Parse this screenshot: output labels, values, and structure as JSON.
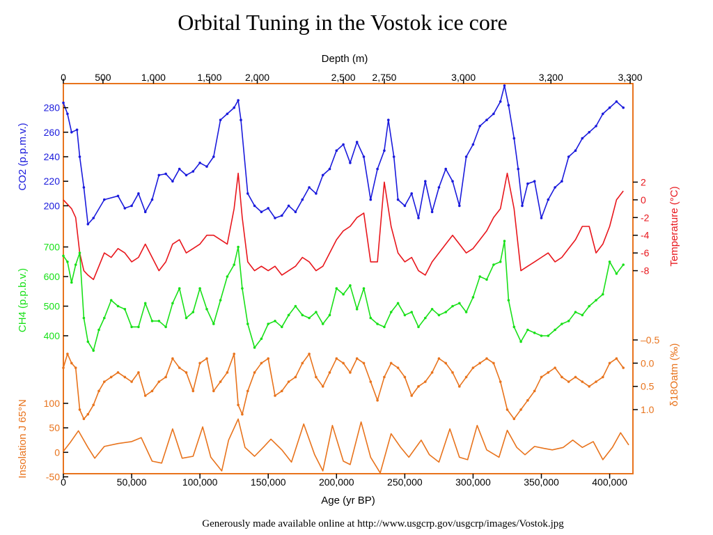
{
  "slide": {
    "title": "Orbital Tuning in the Vostok ice core",
    "caption": "Generously made available online at http://www.usgcrp.gov/usgcrp/images/Vostok.jpg"
  },
  "colors": {
    "frame": "#e8731c",
    "co2": "#1a1adc",
    "temperature": "#e8161c",
    "ch4": "#18e018",
    "d18o": "#e8731c",
    "insolation": "#e8731c",
    "text": "#000000"
  },
  "chart_data": {
    "type": "line",
    "title": "",
    "x_axis": {
      "label": "Age (yr BP)",
      "range": [
        0,
        415000
      ],
      "ticks": [
        0,
        50000,
        100000,
        150000,
        200000,
        250000,
        300000,
        350000,
        400000
      ],
      "tick_labels": [
        "0",
        "50,000",
        "100,000",
        "150,000",
        "200,000",
        "250,000",
        "300,000",
        "350,000",
        "400,000"
      ]
    },
    "top_axis": {
      "label": "Depth (m)",
      "tick_labels": [
        "0",
        "500",
        "1,000",
        "1,500",
        "2,000",
        "2,500",
        "2,750",
        "3,000",
        "3,200",
        "3,300"
      ],
      "tick_ages": [
        0,
        29000,
        66000,
        107000,
        142000,
        205000,
        235000,
        293000,
        357000,
        415000
      ]
    },
    "panels": [
      {
        "id": "co2",
        "label": "CO2 (p.p.m.v.)",
        "side": "left",
        "ticks": [
          200,
          220,
          240,
          260,
          280
        ],
        "ylim": [
          190,
          290
        ],
        "x": [
          0,
          3000,
          6000,
          10000,
          12000,
          15000,
          18000,
          22000,
          30000,
          40000,
          45000,
          50000,
          55000,
          60000,
          65000,
          70000,
          75000,
          80000,
          85000,
          90000,
          95000,
          100000,
          105000,
          110000,
          115000,
          120000,
          125000,
          128000,
          130000,
          135000,
          140000,
          145000,
          150000,
          155000,
          160000,
          165000,
          170000,
          175000,
          180000,
          185000,
          190000,
          195000,
          200000,
          205000,
          210000,
          215000,
          220000,
          225000,
          230000,
          235000,
          238000,
          242000,
          245000,
          250000,
          255000,
          260000,
          265000,
          270000,
          275000,
          280000,
          285000,
          290000,
          295000,
          300000,
          305000,
          310000,
          315000,
          320000,
          323000,
          326000,
          330000,
          333000,
          336000,
          340000,
          345000,
          350000,
          355000,
          360000,
          365000,
          370000,
          375000,
          380000,
          385000,
          390000,
          395000,
          400000,
          405000,
          410000
        ],
        "values": [
          284,
          275,
          260,
          262,
          240,
          215,
          185,
          190,
          205,
          208,
          198,
          200,
          210,
          195,
          205,
          225,
          226,
          220,
          230,
          225,
          228,
          235,
          232,
          240,
          270,
          275,
          280,
          286,
          270,
          210,
          200,
          195,
          198,
          190,
          192,
          200,
          195,
          205,
          215,
          210,
          225,
          230,
          245,
          250,
          235,
          252,
          240,
          205,
          230,
          245,
          270,
          240,
          205,
          200,
          210,
          190,
          220,
          195,
          215,
          230,
          220,
          200,
          240,
          250,
          265,
          270,
          275,
          285,
          298,
          282,
          255,
          230,
          200,
          218,
          220,
          190,
          205,
          215,
          220,
          240,
          245,
          255,
          260,
          265,
          275,
          280,
          285,
          280
        ]
      },
      {
        "id": "temperature",
        "label": "Temperature (°C)",
        "side": "right",
        "ticks": [
          2,
          0,
          -2,
          -4,
          -6,
          -8
        ],
        "ylim": [
          -10,
          4
        ],
        "x": [
          0,
          3000,
          6000,
          9000,
          12000,
          15000,
          18000,
          22000,
          26000,
          30000,
          35000,
          40000,
          45000,
          50000,
          55000,
          60000,
          65000,
          70000,
          75000,
          80000,
          85000,
          90000,
          95000,
          100000,
          105000,
          110000,
          115000,
          120000,
          125000,
          128000,
          131000,
          135000,
          140000,
          145000,
          150000,
          155000,
          160000,
          165000,
          170000,
          175000,
          180000,
          185000,
          190000,
          195000,
          200000,
          205000,
          210000,
          215000,
          220000,
          225000,
          230000,
          235000,
          240000,
          245000,
          250000,
          255000,
          260000,
          265000,
          270000,
          275000,
          280000,
          285000,
          290000,
          295000,
          300000,
          305000,
          310000,
          315000,
          320000,
          325000,
          330000,
          335000,
          340000,
          345000,
          350000,
          355000,
          360000,
          365000,
          370000,
          375000,
          380000,
          385000,
          390000,
          395000,
          400000,
          405000,
          410000
        ],
        "values": [
          0,
          -0.5,
          -1,
          -2,
          -6,
          -8,
          -8.5,
          -9,
          -7.5,
          -6,
          -6.5,
          -5.5,
          -6,
          -7,
          -6.5,
          -5,
          -6.5,
          -8,
          -7,
          -5,
          -4.5,
          -6,
          -5.5,
          -5,
          -4,
          -4,
          -4.5,
          -5,
          -1,
          3,
          -2,
          -7,
          -8,
          -7.5,
          -8,
          -7.5,
          -8.5,
          -8,
          -7.5,
          -6.5,
          -7,
          -8,
          -7.5,
          -6,
          -4.5,
          -3.5,
          -3,
          -2,
          -1.5,
          -7,
          -7,
          2,
          -3,
          -6,
          -7,
          -6.5,
          -8,
          -8.5,
          -7,
          -6,
          -5,
          -4,
          -5,
          -6,
          -5.5,
          -4.5,
          -3.5,
          -2,
          -1,
          3,
          -1,
          -8,
          -7.5,
          -7,
          -6.5,
          -6,
          -7,
          -6.5,
          -5.5,
          -4.5,
          -3,
          -3,
          -6,
          -5,
          -3,
          0,
          1
        ]
      },
      {
        "id": "ch4",
        "label": "CH4 (p.p.b.v.)",
        "side": "left",
        "ticks": [
          400,
          500,
          600,
          700
        ],
        "ylim": [
          320,
          720
        ],
        "x": [
          0,
          3000,
          6000,
          9000,
          12000,
          15000,
          18000,
          22000,
          26000,
          30000,
          35000,
          40000,
          45000,
          50000,
          55000,
          60000,
          65000,
          70000,
          75000,
          80000,
          85000,
          90000,
          95000,
          100000,
          105000,
          110000,
          115000,
          120000,
          125000,
          128000,
          131000,
          135000,
          140000,
          145000,
          150000,
          155000,
          160000,
          165000,
          170000,
          175000,
          180000,
          185000,
          190000,
          195000,
          200000,
          205000,
          210000,
          215000,
          220000,
          225000,
          230000,
          235000,
          240000,
          245000,
          250000,
          255000,
          260000,
          265000,
          270000,
          275000,
          280000,
          285000,
          290000,
          295000,
          300000,
          305000,
          310000,
          315000,
          320000,
          323000,
          326000,
          330000,
          335000,
          340000,
          345000,
          350000,
          355000,
          360000,
          365000,
          370000,
          375000,
          380000,
          385000,
          390000,
          395000,
          400000,
          405000,
          410000
        ],
        "values": [
          670,
          650,
          580,
          640,
          680,
          460,
          380,
          350,
          420,
          460,
          520,
          500,
          490,
          430,
          430,
          510,
          450,
          450,
          430,
          510,
          560,
          460,
          480,
          560,
          490,
          440,
          520,
          600,
          640,
          700,
          560,
          440,
          360,
          390,
          440,
          450,
          430,
          470,
          500,
          470,
          460,
          480,
          440,
          470,
          560,
          540,
          570,
          490,
          560,
          460,
          440,
          430,
          480,
          510,
          470,
          480,
          430,
          460,
          490,
          470,
          480,
          500,
          510,
          480,
          530,
          600,
          590,
          640,
          650,
          720,
          520,
          430,
          380,
          420,
          410,
          400,
          400,
          420,
          440,
          450,
          480,
          470,
          500,
          520,
          540,
          650,
          610,
          640
        ]
      },
      {
        "id": "d18o",
        "label": "δ18Oatm (‰)",
        "side": "right",
        "ticks": [
          -0.5,
          0.0,
          0.5,
          1.0
        ],
        "tick_labels": [
          "–0.5",
          "0.0",
          "0.5",
          "1.0"
        ],
        "ylim": [
          1.3,
          -0.8
        ],
        "inverted": true,
        "x": [
          0,
          3000,
          6000,
          9000,
          12000,
          15000,
          18000,
          22000,
          26000,
          30000,
          35000,
          40000,
          45000,
          50000,
          55000,
          60000,
          65000,
          70000,
          75000,
          80000,
          85000,
          90000,
          95000,
          100000,
          105000,
          110000,
          115000,
          120000,
          125000,
          128000,
          131000,
          135000,
          140000,
          145000,
          150000,
          155000,
          160000,
          165000,
          170000,
          175000,
          180000,
          185000,
          190000,
          195000,
          200000,
          205000,
          210000,
          215000,
          220000,
          225000,
          230000,
          235000,
          240000,
          245000,
          250000,
          255000,
          260000,
          265000,
          270000,
          275000,
          280000,
          285000,
          290000,
          295000,
          300000,
          305000,
          310000,
          315000,
          320000,
          325000,
          330000,
          335000,
          340000,
          345000,
          350000,
          355000,
          360000,
          365000,
          370000,
          375000,
          380000,
          385000,
          390000,
          395000,
          400000,
          405000,
          410000
        ],
        "values": [
          0.1,
          -0.2,
          0.0,
          0.1,
          1.0,
          1.2,
          1.1,
          0.9,
          0.6,
          0.4,
          0.3,
          0.2,
          0.3,
          0.4,
          0.2,
          0.7,
          0.6,
          0.4,
          0.3,
          -0.1,
          0.1,
          0.2,
          0.6,
          0.0,
          -0.1,
          0.6,
          0.4,
          0.2,
          -0.2,
          0.9,
          1.1,
          0.6,
          0.2,
          0.0,
          -0.1,
          0.7,
          0.6,
          0.4,
          0.3,
          0.0,
          -0.2,
          0.3,
          0.5,
          0.2,
          -0.1,
          0.0,
          0.2,
          -0.1,
          0.0,
          0.4,
          0.8,
          0.3,
          0.0,
          0.1,
          0.3,
          0.7,
          0.5,
          0.4,
          0.2,
          -0.1,
          0.0,
          0.2,
          0.5,
          0.3,
          0.1,
          0.0,
          -0.1,
          0.0,
          0.4,
          1.0,
          1.2,
          1.0,
          0.8,
          0.6,
          0.3,
          0.2,
          0.1,
          0.3,
          0.4,
          0.3,
          0.4,
          0.5,
          0.4,
          0.3,
          0.0,
          -0.1,
          0.1
        ]
      },
      {
        "id": "insolation",
        "label": "Insolation J 65°N",
        "side": "left",
        "ticks": [
          -50,
          0,
          50,
          100
        ],
        "ylim": [
          -55,
          110
        ],
        "x": [
          0,
          5000,
          11000,
          18000,
          23000,
          30000,
          40000,
          50000,
          57000,
          65000,
          72000,
          80000,
          87000,
          95000,
          102000,
          108000,
          116000,
          121000,
          128000,
          133000,
          140000,
          147000,
          152000,
          160000,
          167000,
          176000,
          184000,
          190000,
          197000,
          205000,
          210000,
          218000,
          225000,
          232000,
          240000,
          247000,
          253000,
          262000,
          268000,
          275000,
          283000,
          290000,
          296000,
          303000,
          310000,
          319000,
          325000,
          332000,
          338000,
          345000,
          352000,
          358000,
          366000,
          373000,
          380000,
          388000,
          395000,
          402000,
          408000,
          414000
        ],
        "values": [
          2,
          20,
          44,
          10,
          -12,
          12,
          18,
          22,
          30,
          -18,
          -22,
          48,
          -12,
          -8,
          52,
          -10,
          -38,
          25,
          68,
          10,
          -8,
          12,
          27,
          5,
          -20,
          58,
          -5,
          -38,
          55,
          -18,
          -25,
          62,
          -10,
          -42,
          38,
          10,
          -10,
          25,
          -5,
          -20,
          48,
          -10,
          -15,
          55,
          5,
          -10,
          45,
          10,
          -5,
          12,
          8,
          5,
          10,
          25,
          10,
          22,
          -15,
          10,
          40,
          15
        ]
      }
    ],
    "grid": false,
    "legend": "none"
  }
}
